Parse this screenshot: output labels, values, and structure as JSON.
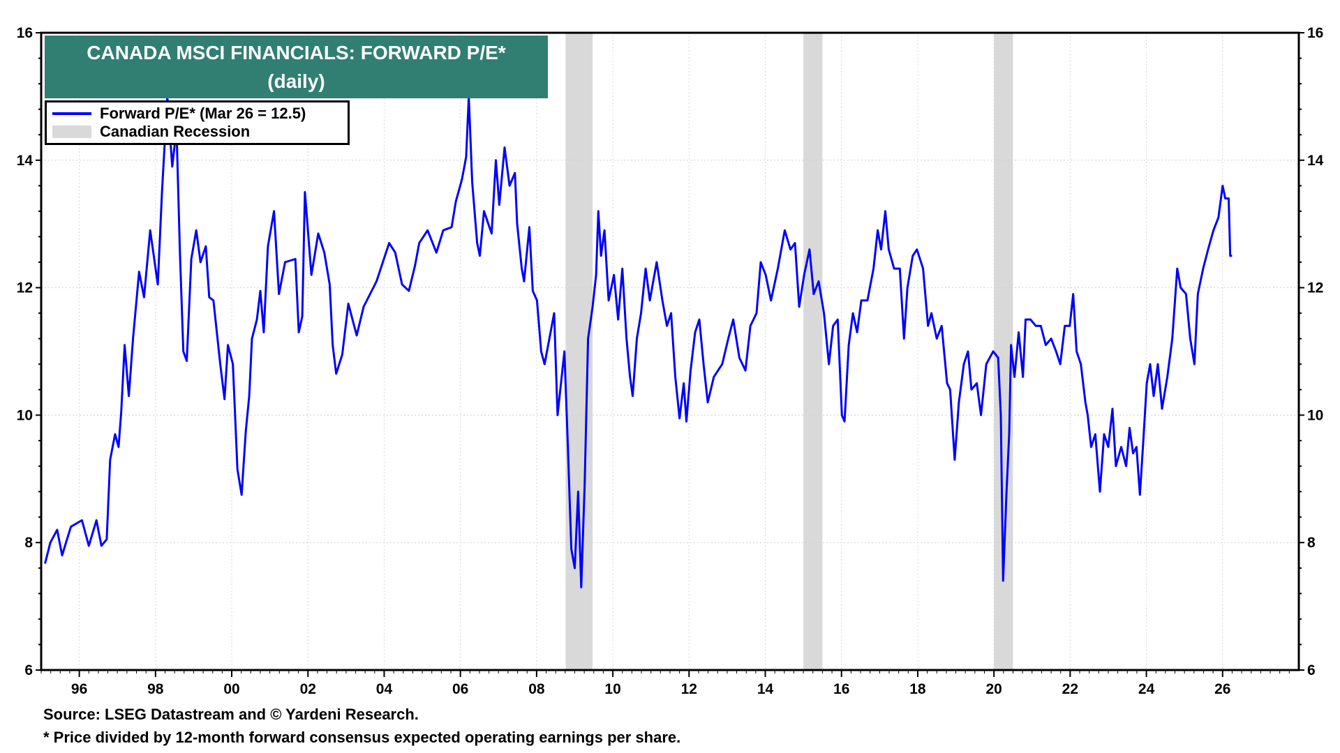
{
  "chart_data": {
    "type": "line",
    "title": "CANADA MSCI FINANCIALS: FORWARD P/E*",
    "subtitle": "(daily)",
    "xlim": [
      1995.0,
      2028.0
    ],
    "ylim": [
      6,
      16
    ],
    "y_ticks": [
      6,
      8,
      10,
      12,
      14,
      16
    ],
    "x_ticks": [
      1996,
      1998,
      2000,
      2002,
      2004,
      2006,
      2008,
      2010,
      2012,
      2014,
      2016,
      2018,
      2020,
      2022,
      2024,
      2026
    ],
    "x_tick_labels": [
      "96",
      "98",
      "00",
      "02",
      "04",
      "06",
      "08",
      "10",
      "12",
      "14",
      "16",
      "18",
      "20",
      "22",
      "24",
      "26"
    ],
    "y_tick_labels": [
      "6",
      "8",
      "10",
      "12",
      "14",
      "16"
    ],
    "grid": true,
    "legend_placement": "top-left",
    "colors": {
      "series": "#0000ff",
      "recession": "#d9d9d9",
      "title_bg": "#307f72"
    },
    "legend": [
      {
        "label": "Forward P/E* (Mar 26 = 12.5)",
        "kind": "line"
      },
      {
        "label": "Canadian Recession",
        "kind": "shade"
      }
    ],
    "recessions": [
      [
        2008.76,
        2009.47
      ],
      [
        2015.0,
        2015.5
      ],
      [
        2020.0,
        2020.5
      ]
    ],
    "series": [
      {
        "name": "Forward P/E* (Mar 26 = 12.5)",
        "points": [
          [
            1995.1,
            7.67
          ],
          [
            1995.24,
            8.0
          ],
          [
            1995.42,
            8.2
          ],
          [
            1995.55,
            7.8
          ],
          [
            1995.78,
            8.25
          ],
          [
            1996.07,
            8.35
          ],
          [
            1996.25,
            7.95
          ],
          [
            1996.45,
            8.35
          ],
          [
            1996.58,
            7.95
          ],
          [
            1996.72,
            8.05
          ],
          [
            1996.81,
            9.3
          ],
          [
            1996.94,
            9.7
          ],
          [
            1997.03,
            9.5
          ],
          [
            1997.1,
            10.05
          ],
          [
            1997.19,
            11.1
          ],
          [
            1997.3,
            10.3
          ],
          [
            1997.41,
            11.2
          ],
          [
            1997.57,
            12.25
          ],
          [
            1997.7,
            11.85
          ],
          [
            1997.86,
            12.9
          ],
          [
            1998.06,
            12.05
          ],
          [
            1998.17,
            13.5
          ],
          [
            1998.31,
            15.0
          ],
          [
            1998.44,
            13.9
          ],
          [
            1998.55,
            14.5
          ],
          [
            1998.64,
            12.55
          ],
          [
            1998.73,
            11.0
          ],
          [
            1998.82,
            10.85
          ],
          [
            1998.94,
            12.45
          ],
          [
            1999.07,
            12.9
          ],
          [
            1999.18,
            12.4
          ],
          [
            1999.32,
            12.65
          ],
          [
            1999.41,
            11.85
          ],
          [
            1999.52,
            11.8
          ],
          [
            1999.7,
            10.8
          ],
          [
            1999.81,
            10.25
          ],
          [
            1999.9,
            11.1
          ],
          [
            2000.03,
            10.8
          ],
          [
            2000.15,
            9.15
          ],
          [
            2000.26,
            8.75
          ],
          [
            2000.37,
            9.75
          ],
          [
            2000.46,
            10.3
          ],
          [
            2000.53,
            11.2
          ],
          [
            2000.66,
            11.5
          ],
          [
            2000.75,
            11.95
          ],
          [
            2000.84,
            11.3
          ],
          [
            2000.95,
            12.65
          ],
          [
            2001.11,
            13.2
          ],
          [
            2001.24,
            11.9
          ],
          [
            2001.4,
            12.4
          ],
          [
            2001.67,
            12.45
          ],
          [
            2001.76,
            11.3
          ],
          [
            2001.85,
            11.55
          ],
          [
            2001.92,
            13.5
          ],
          [
            2002.09,
            12.2
          ],
          [
            2002.27,
            12.85
          ],
          [
            2002.43,
            12.55
          ],
          [
            2002.57,
            12.05
          ],
          [
            2002.65,
            11.1
          ],
          [
            2002.74,
            10.65
          ],
          [
            2002.9,
            10.95
          ],
          [
            2003.06,
            11.75
          ],
          [
            2003.28,
            11.25
          ],
          [
            2003.46,
            11.7
          ],
          [
            2003.8,
            12.1
          ],
          [
            2004.13,
            12.7
          ],
          [
            2004.29,
            12.55
          ],
          [
            2004.47,
            12.05
          ],
          [
            2004.65,
            11.95
          ],
          [
            2004.81,
            12.35
          ],
          [
            2004.92,
            12.7
          ],
          [
            2005.14,
            12.9
          ],
          [
            2005.37,
            12.55
          ],
          [
            2005.55,
            12.9
          ],
          [
            2005.77,
            12.95
          ],
          [
            2005.88,
            13.35
          ],
          [
            2006.04,
            13.7
          ],
          [
            2006.15,
            14.05
          ],
          [
            2006.22,
            15.0
          ],
          [
            2006.31,
            13.65
          ],
          [
            2006.44,
            12.7
          ],
          [
            2006.51,
            12.5
          ],
          [
            2006.62,
            13.2
          ],
          [
            2006.82,
            12.85
          ],
          [
            2006.93,
            14.0
          ],
          [
            2007.02,
            13.3
          ],
          [
            2007.16,
            14.2
          ],
          [
            2007.29,
            13.6
          ],
          [
            2007.43,
            13.8
          ],
          [
            2007.49,
            13.0
          ],
          [
            2007.61,
            12.3
          ],
          [
            2007.67,
            12.1
          ],
          [
            2007.81,
            12.95
          ],
          [
            2007.9,
            11.95
          ],
          [
            2008.01,
            11.8
          ],
          [
            2008.12,
            11.0
          ],
          [
            2008.21,
            10.8
          ],
          [
            2008.46,
            11.6
          ],
          [
            2008.55,
            10.0
          ],
          [
            2008.73,
            11.0
          ],
          [
            2008.82,
            9.5
          ],
          [
            2008.91,
            7.9
          ],
          [
            2009.0,
            7.6
          ],
          [
            2009.09,
            8.8
          ],
          [
            2009.17,
            7.3
          ],
          [
            2009.26,
            8.9
          ],
          [
            2009.35,
            11.2
          ],
          [
            2009.47,
            11.7
          ],
          [
            2009.56,
            12.2
          ],
          [
            2009.62,
            13.2
          ],
          [
            2009.69,
            12.5
          ],
          [
            2009.78,
            12.9
          ],
          [
            2009.89,
            11.8
          ],
          [
            2010.03,
            12.2
          ],
          [
            2010.14,
            11.5
          ],
          [
            2010.25,
            12.3
          ],
          [
            2010.36,
            11.2
          ],
          [
            2010.45,
            10.6
          ],
          [
            2010.52,
            10.3
          ],
          [
            2010.63,
            11.2
          ],
          [
            2010.74,
            11.6
          ],
          [
            2010.86,
            12.3
          ],
          [
            2010.97,
            11.8
          ],
          [
            2011.15,
            12.4
          ],
          [
            2011.3,
            11.8
          ],
          [
            2011.42,
            11.4
          ],
          [
            2011.53,
            11.6
          ],
          [
            2011.64,
            10.6
          ],
          [
            2011.75,
            9.95
          ],
          [
            2011.86,
            10.5
          ],
          [
            2011.93,
            9.9
          ],
          [
            2012.04,
            10.7
          ],
          [
            2012.16,
            11.3
          ],
          [
            2012.27,
            11.5
          ],
          [
            2012.38,
            10.8
          ],
          [
            2012.49,
            10.2
          ],
          [
            2012.65,
            10.6
          ],
          [
            2012.87,
            10.8
          ],
          [
            2013.03,
            11.2
          ],
          [
            2013.16,
            11.5
          ],
          [
            2013.32,
            10.9
          ],
          [
            2013.48,
            10.7
          ],
          [
            2013.61,
            11.4
          ],
          [
            2013.77,
            11.6
          ],
          [
            2013.88,
            12.4
          ],
          [
            2014.01,
            12.2
          ],
          [
            2014.15,
            11.8
          ],
          [
            2014.33,
            12.3
          ],
          [
            2014.51,
            12.9
          ],
          [
            2014.66,
            12.6
          ],
          [
            2014.78,
            12.7
          ],
          [
            2014.89,
            11.7
          ],
          [
            2015.02,
            12.2
          ],
          [
            2015.16,
            12.6
          ],
          [
            2015.27,
            11.9
          ],
          [
            2015.4,
            12.1
          ],
          [
            2015.54,
            11.6
          ],
          [
            2015.67,
            10.8
          ],
          [
            2015.78,
            11.4
          ],
          [
            2015.9,
            11.5
          ],
          [
            2016.01,
            10.0
          ],
          [
            2016.08,
            9.9
          ],
          [
            2016.19,
            11.1
          ],
          [
            2016.3,
            11.6
          ],
          [
            2016.41,
            11.3
          ],
          [
            2016.52,
            11.8
          ],
          [
            2016.68,
            11.8
          ],
          [
            2016.84,
            12.3
          ],
          [
            2016.95,
            12.9
          ],
          [
            2017.04,
            12.6
          ],
          [
            2017.15,
            13.2
          ],
          [
            2017.24,
            12.6
          ],
          [
            2017.38,
            12.3
          ],
          [
            2017.53,
            12.3
          ],
          [
            2017.64,
            11.2
          ],
          [
            2017.73,
            12.0
          ],
          [
            2017.87,
            12.5
          ],
          [
            2017.98,
            12.6
          ],
          [
            2018.14,
            12.3
          ],
          [
            2018.27,
            11.4
          ],
          [
            2018.36,
            11.6
          ],
          [
            2018.5,
            11.2
          ],
          [
            2018.63,
            11.4
          ],
          [
            2018.77,
            10.5
          ],
          [
            2018.85,
            10.4
          ],
          [
            2018.97,
            9.3
          ],
          [
            2019.08,
            10.2
          ],
          [
            2019.21,
            10.8
          ],
          [
            2019.32,
            11.0
          ],
          [
            2019.41,
            10.4
          ],
          [
            2019.55,
            10.5
          ],
          [
            2019.66,
            10.0
          ],
          [
            2019.8,
            10.8
          ],
          [
            2019.89,
            10.9
          ],
          [
            2019.98,
            11.0
          ],
          [
            2020.11,
            10.9
          ],
          [
            2020.18,
            10.0
          ],
          [
            2020.24,
            7.4
          ],
          [
            2020.33,
            8.8
          ],
          [
            2020.4,
            9.7
          ],
          [
            2020.45,
            11.1
          ],
          [
            2020.54,
            10.6
          ],
          [
            2020.65,
            11.3
          ],
          [
            2020.76,
            10.6
          ],
          [
            2020.83,
            11.5
          ],
          [
            2020.96,
            11.5
          ],
          [
            2021.1,
            11.4
          ],
          [
            2021.23,
            11.4
          ],
          [
            2021.36,
            11.1
          ],
          [
            2021.5,
            11.2
          ],
          [
            2021.63,
            11.0
          ],
          [
            2021.74,
            10.8
          ],
          [
            2021.86,
            11.4
          ],
          [
            2021.99,
            11.4
          ],
          [
            2022.08,
            11.9
          ],
          [
            2022.17,
            11.0
          ],
          [
            2022.28,
            10.8
          ],
          [
            2022.4,
            10.2
          ],
          [
            2022.46,
            10.0
          ],
          [
            2022.55,
            9.5
          ],
          [
            2022.66,
            9.7
          ],
          [
            2022.78,
            8.8
          ],
          [
            2022.89,
            9.7
          ],
          [
            2023.0,
            9.5
          ],
          [
            2023.11,
            10.1
          ],
          [
            2023.2,
            9.2
          ],
          [
            2023.34,
            9.5
          ],
          [
            2023.47,
            9.2
          ],
          [
            2023.56,
            9.8
          ],
          [
            2023.65,
            9.4
          ],
          [
            2023.74,
            9.5
          ],
          [
            2023.83,
            8.75
          ],
          [
            2023.92,
            9.6
          ],
          [
            2024.01,
            10.5
          ],
          [
            2024.1,
            10.8
          ],
          [
            2024.19,
            10.3
          ],
          [
            2024.3,
            10.8
          ],
          [
            2024.41,
            10.1
          ],
          [
            2024.55,
            10.6
          ],
          [
            2024.68,
            11.2
          ],
          [
            2024.81,
            12.3
          ],
          [
            2024.9,
            12.0
          ],
          [
            2025.04,
            11.9
          ],
          [
            2025.15,
            11.2
          ],
          [
            2025.26,
            10.8
          ],
          [
            2025.35,
            11.9
          ],
          [
            2025.49,
            12.3
          ],
          [
            2025.62,
            12.6
          ],
          [
            2025.76,
            12.9
          ],
          [
            2025.89,
            13.1
          ],
          [
            2026.0,
            13.6
          ],
          [
            2026.07,
            13.4
          ],
          [
            2026.16,
            13.4
          ],
          [
            2026.2,
            12.5
          ],
          [
            2026.25,
            12.5
          ]
        ]
      }
    ]
  },
  "footer": {
    "source": "Source: LSEG Datastream and © Yardeni Research.",
    "footnote": "* Price divided by 12-month forward consensus expected operating earnings per share."
  }
}
